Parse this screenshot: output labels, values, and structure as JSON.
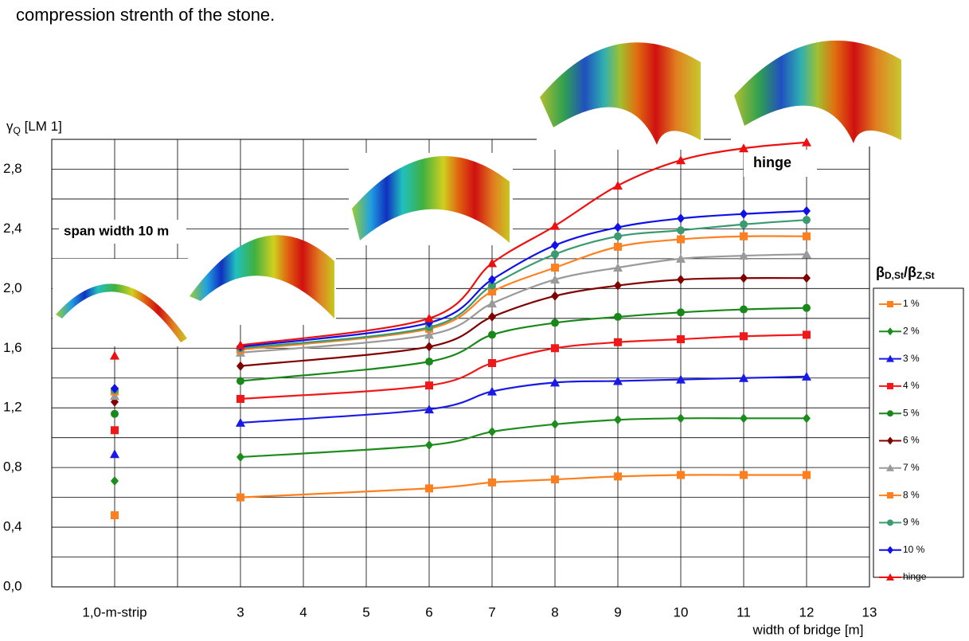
{
  "caption": "compression strenth of the stone.",
  "chart_data": {
    "type": "line",
    "ylabel": [
      "γ",
      "Q",
      " [LM 1]"
    ],
    "xlabel": "width of bridge [m]",
    "legend_title": [
      "β",
      "D,St",
      "/β",
      "Z,St"
    ],
    "legend": "right",
    "grid": true,
    "annotations": [
      "span width 10 m",
      "hinge"
    ],
    "xlim": [
      0,
      13
    ],
    "xticks": [
      {
        "value": 1,
        "label": "1,0-m-strip"
      },
      3,
      4,
      5,
      6,
      7,
      8,
      9,
      10,
      11,
      12,
      13
    ],
    "minor_xticks": [
      2
    ],
    "ylim": [
      0,
      3
    ],
    "yticks": [
      {
        "value": 0,
        "label": "0,0"
      },
      {
        "value": 0.4,
        "label": "0,4"
      },
      {
        "value": 0.8,
        "label": "0,8"
      },
      {
        "value": 1.2,
        "label": "1,2"
      },
      {
        "value": 1.6,
        "label": "1,6"
      },
      {
        "value": 2.0,
        "label": "2,0"
      },
      {
        "value": 2.4,
        "label": "2,4"
      },
      {
        "value": 2.8,
        "label": "2,8"
      }
    ],
    "minor_yticks": [
      0.2,
      0.6,
      1.0,
      1.4,
      1.8,
      2.2,
      2.6
    ],
    "x": [
      1,
      2,
      3,
      6,
      7,
      8,
      9,
      10,
      11,
      12
    ],
    "series": [
      {
        "name": "1 %",
        "color": "#ff7f1e",
        "marker": "square",
        "values": [
          0.48,
          null,
          0.6,
          0.66,
          0.7,
          0.72,
          0.74,
          0.75,
          0.75,
          0.75
        ]
      },
      {
        "name": "2 %",
        "color": "#1c8c1c",
        "marker": "diamond",
        "values": [
          0.71,
          null,
          0.87,
          0.95,
          1.04,
          1.09,
          1.12,
          1.13,
          1.13,
          1.13
        ]
      },
      {
        "name": "3 %",
        "color": "#1a1ae6",
        "marker": "triangle",
        "values": [
          0.89,
          null,
          1.1,
          1.19,
          1.31,
          1.37,
          1.38,
          1.39,
          1.4,
          1.41
        ]
      },
      {
        "name": "4 %",
        "color": "#f01818",
        "marker": "square",
        "values": [
          1.05,
          null,
          1.26,
          1.35,
          1.5,
          1.6,
          1.64,
          1.66,
          1.68,
          1.69
        ]
      },
      {
        "name": "5 %",
        "color": "#188818",
        "marker": "circle",
        "values": [
          1.16,
          null,
          1.38,
          1.51,
          1.69,
          1.77,
          1.81,
          1.84,
          1.86,
          1.87
        ]
      },
      {
        "name": "6 %",
        "color": "#800000",
        "marker": "diamond",
        "values": [
          1.24,
          null,
          1.48,
          1.61,
          1.81,
          1.95,
          2.02,
          2.06,
          2.07,
          2.07
        ]
      },
      {
        "name": "7 %",
        "color": "#9a9a9a",
        "marker": "triangle",
        "values": [
          1.28,
          null,
          1.57,
          1.69,
          1.9,
          2.06,
          2.14,
          2.2,
          2.22,
          2.23
        ]
      },
      {
        "name": "8 %",
        "color": "#ff8020",
        "marker": "square",
        "values": [
          1.31,
          null,
          1.59,
          1.73,
          1.98,
          2.14,
          2.28,
          2.33,
          2.35,
          2.35
        ]
      },
      {
        "name": "9 %",
        "color": "#3a9a70",
        "marker": "circle",
        "values": [
          1.32,
          null,
          1.6,
          1.74,
          2.02,
          2.23,
          2.35,
          2.39,
          2.43,
          2.46
        ]
      },
      {
        "name": "10 %",
        "color": "#1010e8",
        "marker": "diamond",
        "values": [
          1.33,
          null,
          1.61,
          1.77,
          2.06,
          2.29,
          2.41,
          2.47,
          2.5,
          2.52
        ]
      },
      {
        "name": "hinge",
        "color": "#ee1010",
        "marker": "triangle",
        "values": [
          1.55,
          null,
          1.62,
          1.8,
          2.17,
          2.42,
          2.69,
          2.86,
          2.94,
          2.98
        ]
      }
    ]
  }
}
